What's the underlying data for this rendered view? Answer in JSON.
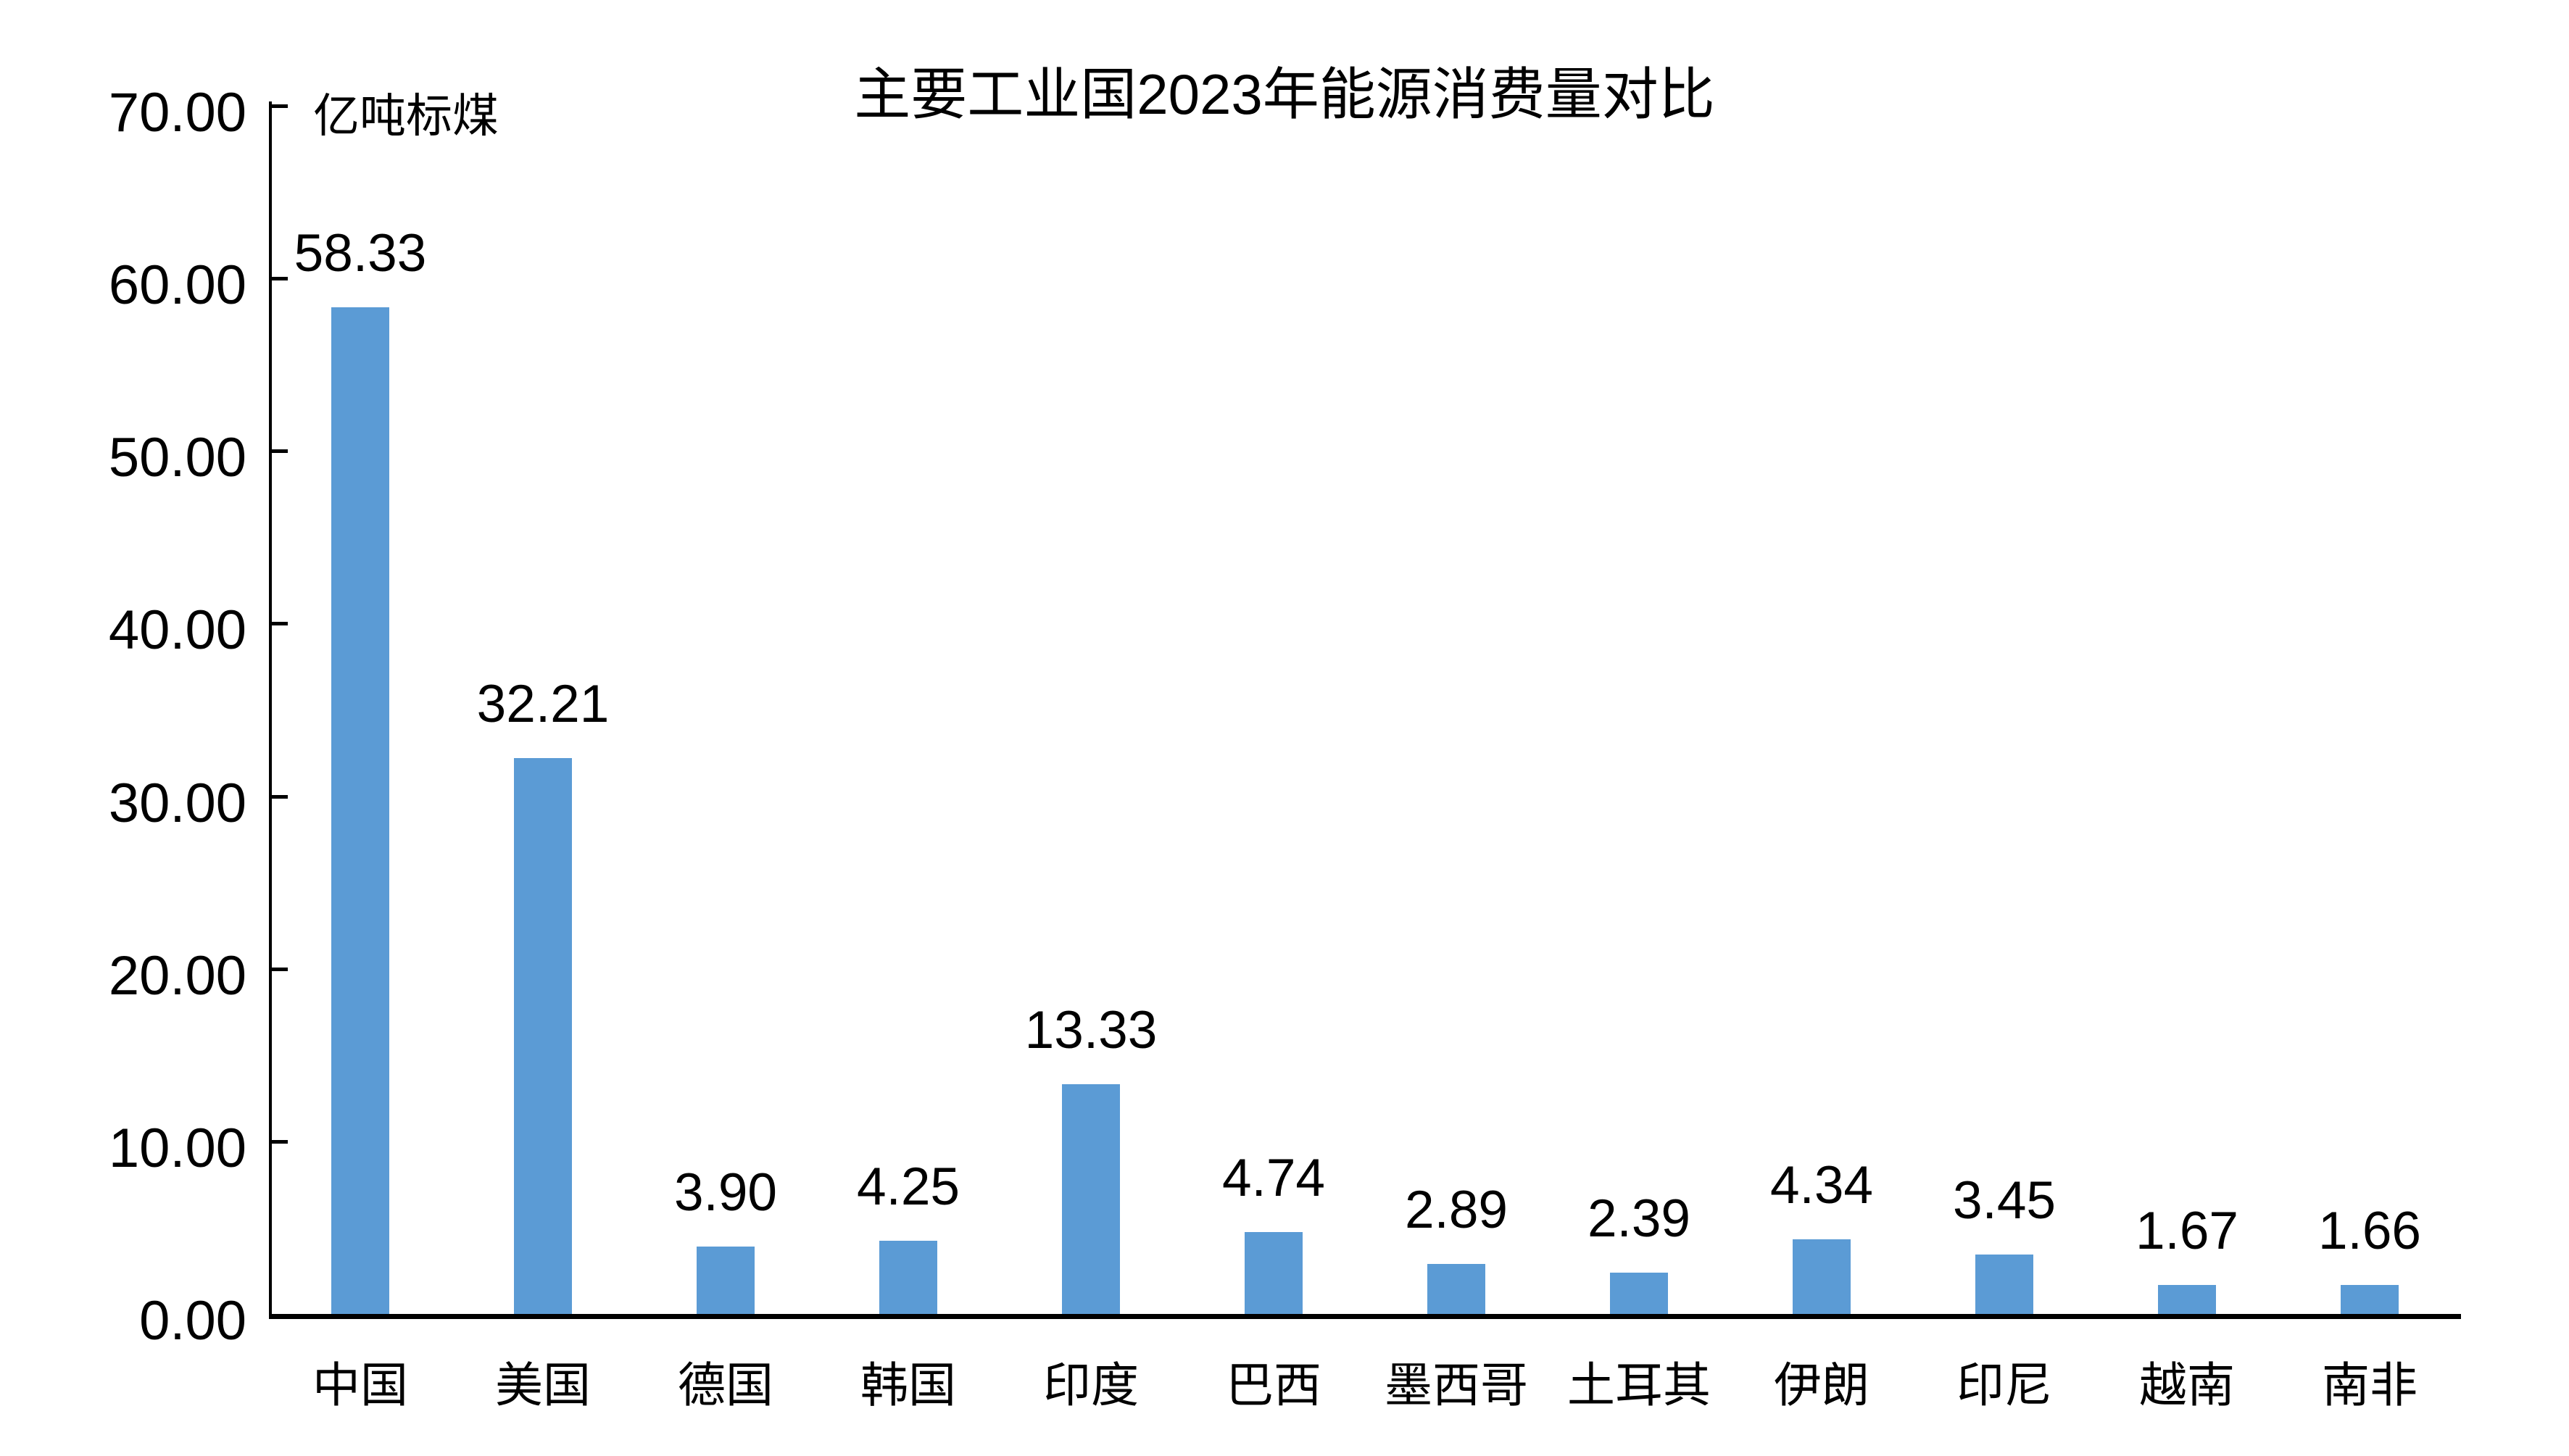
{
  "chart_data": {
    "type": "bar",
    "title": "主要工业国2023年能源消费量对比",
    "unit_label": "亿吨标煤",
    "categories": [
      "中国",
      "美国",
      "德国",
      "韩国",
      "印度",
      "巴西",
      "墨西哥",
      "土耳其",
      "伊朗",
      "印尼",
      "越南",
      "南非"
    ],
    "values": [
      58.33,
      32.21,
      3.9,
      4.25,
      13.33,
      4.74,
      2.89,
      2.39,
      4.34,
      3.45,
      1.67,
      1.66
    ],
    "data_labels": [
      "58.33",
      "32.21",
      "3.90",
      "4.25",
      "13.33",
      "4.74",
      "2.89",
      "2.39",
      "4.34",
      "3.45",
      "1.67",
      "1.66"
    ],
    "ylabel": "",
    "xlabel": "",
    "ylim": [
      0,
      70
    ],
    "yticks": [
      "0.00",
      "10.00",
      "20.00",
      "30.00",
      "40.00",
      "50.00",
      "60.00",
      "70.00"
    ],
    "bar_color": "#5B9BD5",
    "grid": false,
    "legend": "none"
  }
}
